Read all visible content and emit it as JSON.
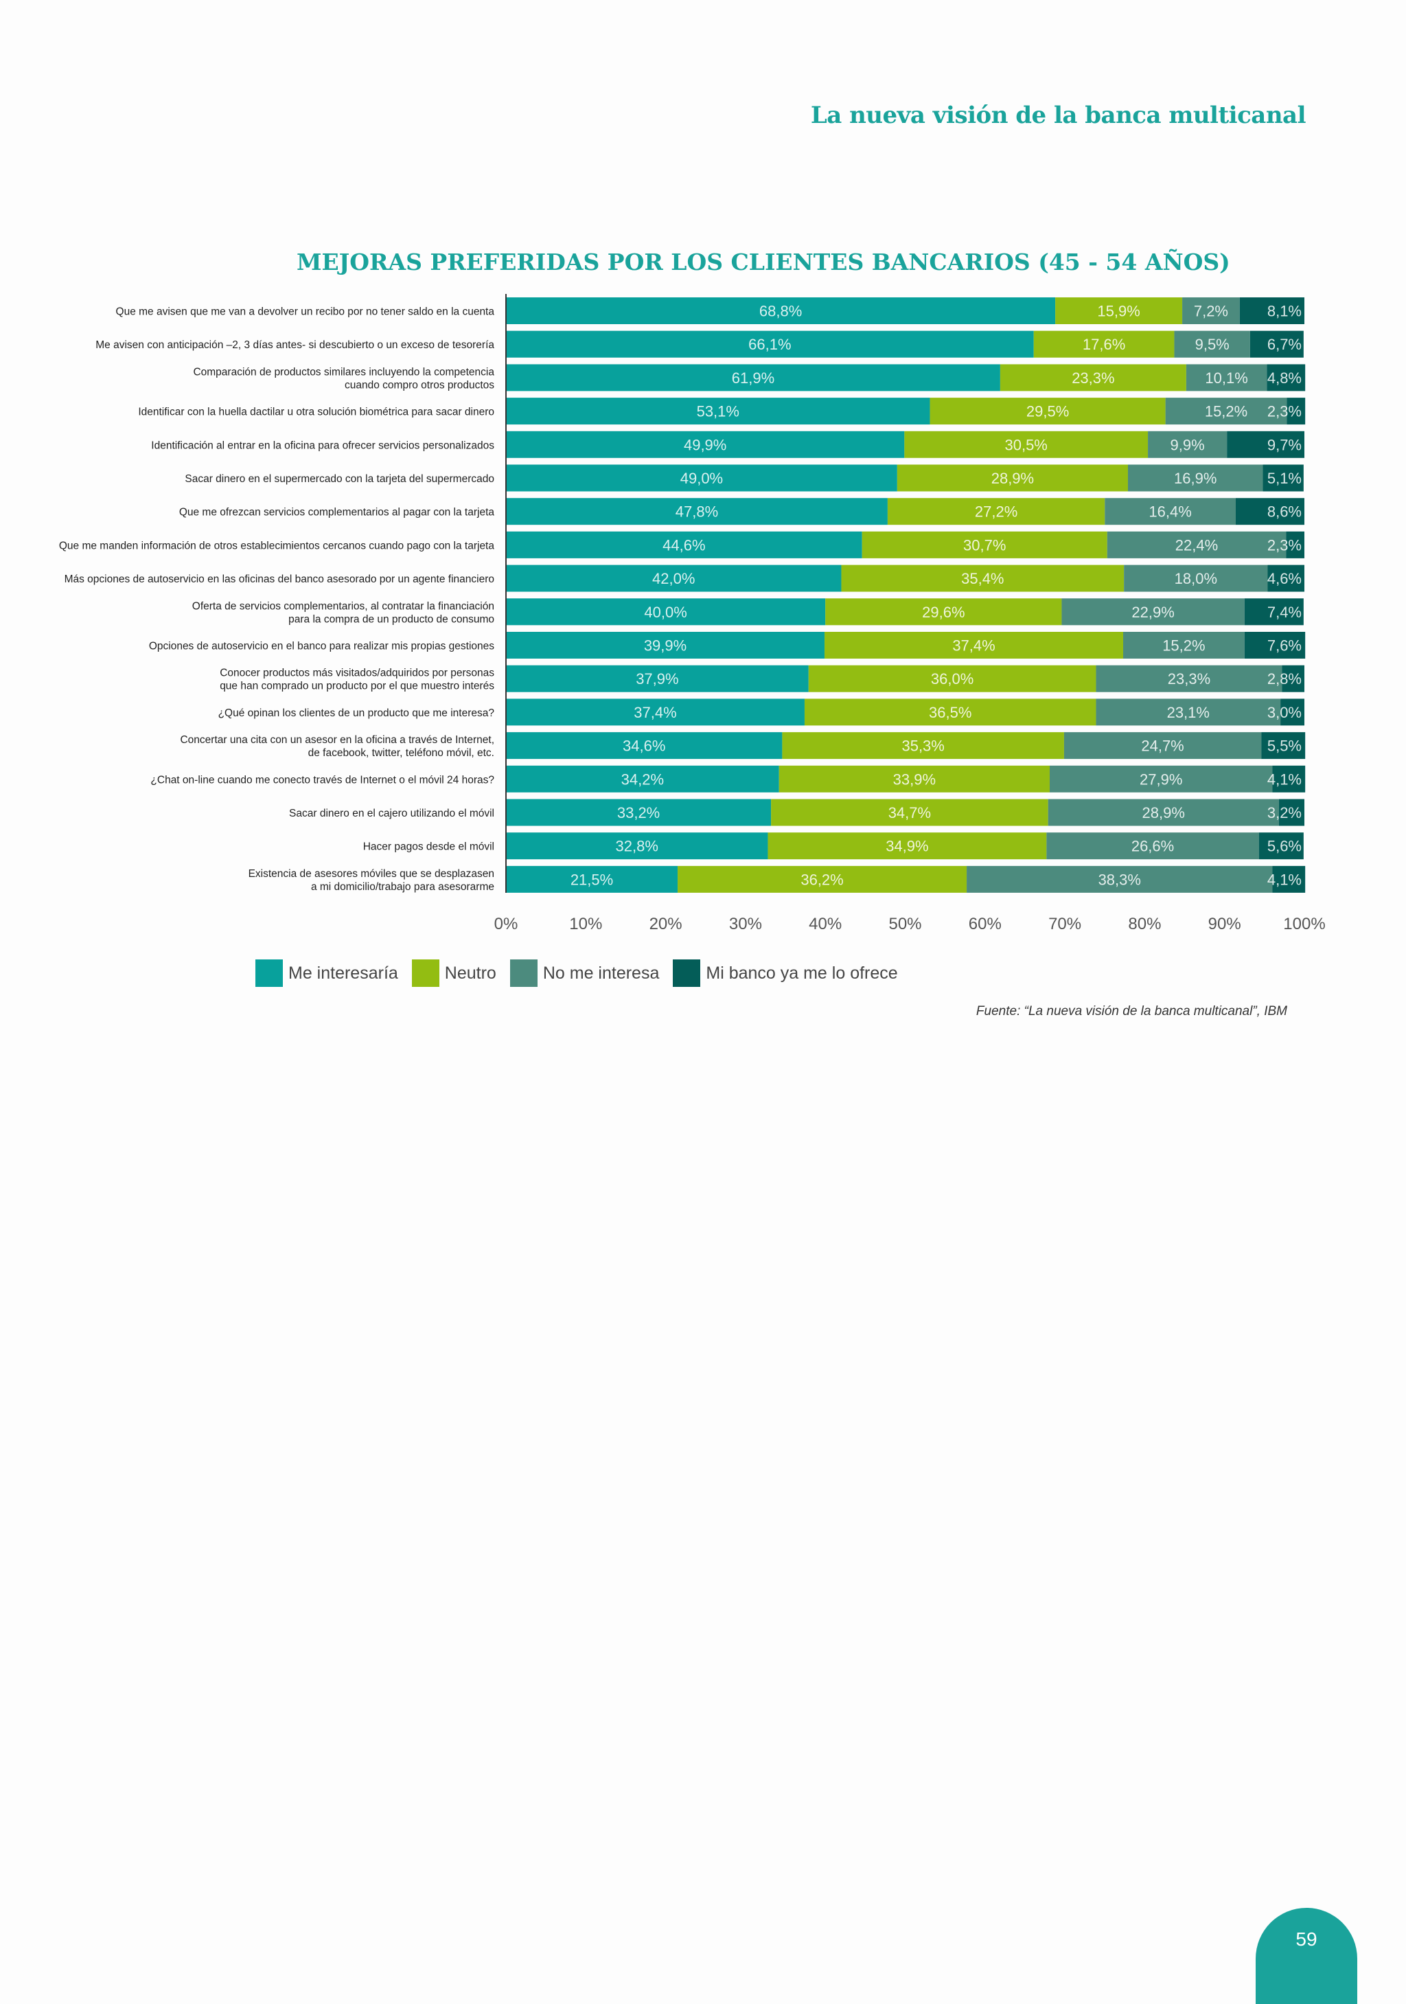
{
  "header": {
    "title": "La nueva visión de la banca multicanal"
  },
  "page_number": "59",
  "source": "Fuente: “La nueva visión de la banca multicanal”, IBM",
  "colors": {
    "me_interesaria": "#08a19c",
    "neutro": "#93bd12",
    "no_me_interesa": "#4c8b7e",
    "ya_lo_ofrece": "#045d58",
    "accent": "#1aa39b"
  },
  "chart_data": {
    "type": "bar",
    "orientation": "horizontal",
    "stacked": true,
    "title": "MEJORAS PREFERIDAS POR LOS CLIENTES BANCARIOS (45 - 54 AÑOS)",
    "xlabel": "",
    "ylabel": "",
    "xlim": [
      0,
      100
    ],
    "x_ticks": [
      "0%",
      "10%",
      "20%",
      "30%",
      "40%",
      "50%",
      "60%",
      "70%",
      "80%",
      "90%",
      "100%"
    ],
    "legend_position": "bottom",
    "categories": [
      [
        "Que me avisen que me van a devolver un recibo por no tener saldo en la cuenta"
      ],
      [
        "Me avisen con anticipación –2, 3 días antes- si descubierto o un exceso de tesorería"
      ],
      [
        "Comparación de productos similares incluyendo la competencia",
        "cuando compro otros productos"
      ],
      [
        "Identificar con la huella dactilar u otra solución biométrica para sacar dinero"
      ],
      [
        "Identificación al entrar en la oficina para ofrecer servicios personalizados"
      ],
      [
        "Sacar dinero en el supermercado con la tarjeta del supermercado"
      ],
      [
        "Que me ofrezcan servicios complementarios al pagar con la tarjeta"
      ],
      [
        "Que me manden información de otros establecimientos cercanos cuando pago con la tarjeta"
      ],
      [
        "Más opciones de autoservicio en las oficinas del banco asesorado por un agente financiero"
      ],
      [
        "Oferta de servicios complementarios, al contratar la financiación",
        "para la compra de un producto de consumo"
      ],
      [
        "Opciones de autoservicio en el banco para realizar mis propias gestiones"
      ],
      [
        "Conocer productos más visitados/adquiridos por personas",
        "que han comprado un producto por el que muestro interés"
      ],
      [
        "¿Qué opinan los clientes de un producto que me interesa?"
      ],
      [
        "Concertar una cita con un asesor en la oficina a través de Internet,",
        "de facebook, twitter, teléfono móvil, etc."
      ],
      [
        "¿Chat on-line cuando me conecto través de Internet o el móvil 24 horas?"
      ],
      [
        "Sacar dinero en el cajero utilizando el móvil"
      ],
      [
        "Hacer pagos desde el móvil"
      ],
      [
        "Existencia de asesores móviles que se desplazasen",
        "a mi domicilio/trabajo para asesorarme"
      ]
    ],
    "series": [
      {
        "name": "Me interesaría",
        "color_key": "me_interesaria",
        "values": [
          68.8,
          66.1,
          61.9,
          53.1,
          49.9,
          49.0,
          47.8,
          44.6,
          42.0,
          40.0,
          39.9,
          37.9,
          37.4,
          34.6,
          34.2,
          33.2,
          32.8,
          21.5
        ],
        "labels": [
          "68,8%",
          "66,1%",
          "61,9%",
          "53,1%",
          "49,9%",
          "49,0%",
          "47,8%",
          "44,6%",
          "42,0%",
          "40,0%",
          "39,9%",
          "37,9%",
          "37,4%",
          "34,6%",
          "34,2%",
          "33,2%",
          "32,8%",
          "21,5%"
        ]
      },
      {
        "name": "Neutro",
        "color_key": "neutro",
        "values": [
          15.9,
          17.6,
          23.3,
          29.5,
          30.5,
          28.9,
          27.2,
          30.7,
          35.4,
          29.6,
          37.4,
          36.0,
          36.5,
          35.3,
          33.9,
          34.7,
          34.9,
          36.2
        ],
        "labels": [
          "15,9%",
          "17,6%",
          "23,3%",
          "29,5%",
          "30,5%",
          "28,9%",
          "27,2%",
          "30,7%",
          "35,4%",
          "29,6%",
          "37,4%",
          "36,0%",
          "36,5%",
          "35,3%",
          "33,9%",
          "34,7%",
          "34,9%",
          "36,2%"
        ]
      },
      {
        "name": "No me interesa",
        "color_key": "no_me_interesa",
        "values": [
          7.2,
          9.5,
          10.1,
          15.2,
          9.9,
          16.9,
          16.4,
          22.4,
          18.0,
          22.9,
          15.2,
          23.3,
          23.1,
          24.7,
          27.9,
          28.9,
          26.6,
          38.3
        ],
        "labels": [
          "7,2%",
          "9,5%",
          "10,1%",
          "15,2%",
          "9,9%",
          "16,9%",
          "16,4%",
          "22,4%",
          "18,0%",
          "22,9%",
          "15,2%",
          "23,3%",
          "23,1%",
          "24,7%",
          "27,9%",
          "28,9%",
          "26,6%",
          "38,3%"
        ]
      },
      {
        "name": "Mi banco ya me lo ofrece",
        "color_key": "ya_lo_ofrece",
        "values": [
          8.1,
          6.7,
          4.8,
          2.3,
          9.7,
          5.1,
          8.6,
          2.3,
          4.6,
          7.4,
          7.6,
          2.8,
          3.0,
          5.5,
          4.1,
          3.2,
          5.6,
          4.1
        ],
        "labels": [
          "8,1%",
          "6,7%",
          "4,8%",
          "2,3%",
          "9,7%",
          "5,1%",
          "8,6%",
          "2,3%",
          "4,6%",
          "7,4%",
          "7,6%",
          "2,8%",
          "3,0%",
          "5,5%",
          "4,1%",
          "3,2%",
          "5,6%",
          "4,1%"
        ]
      }
    ]
  }
}
